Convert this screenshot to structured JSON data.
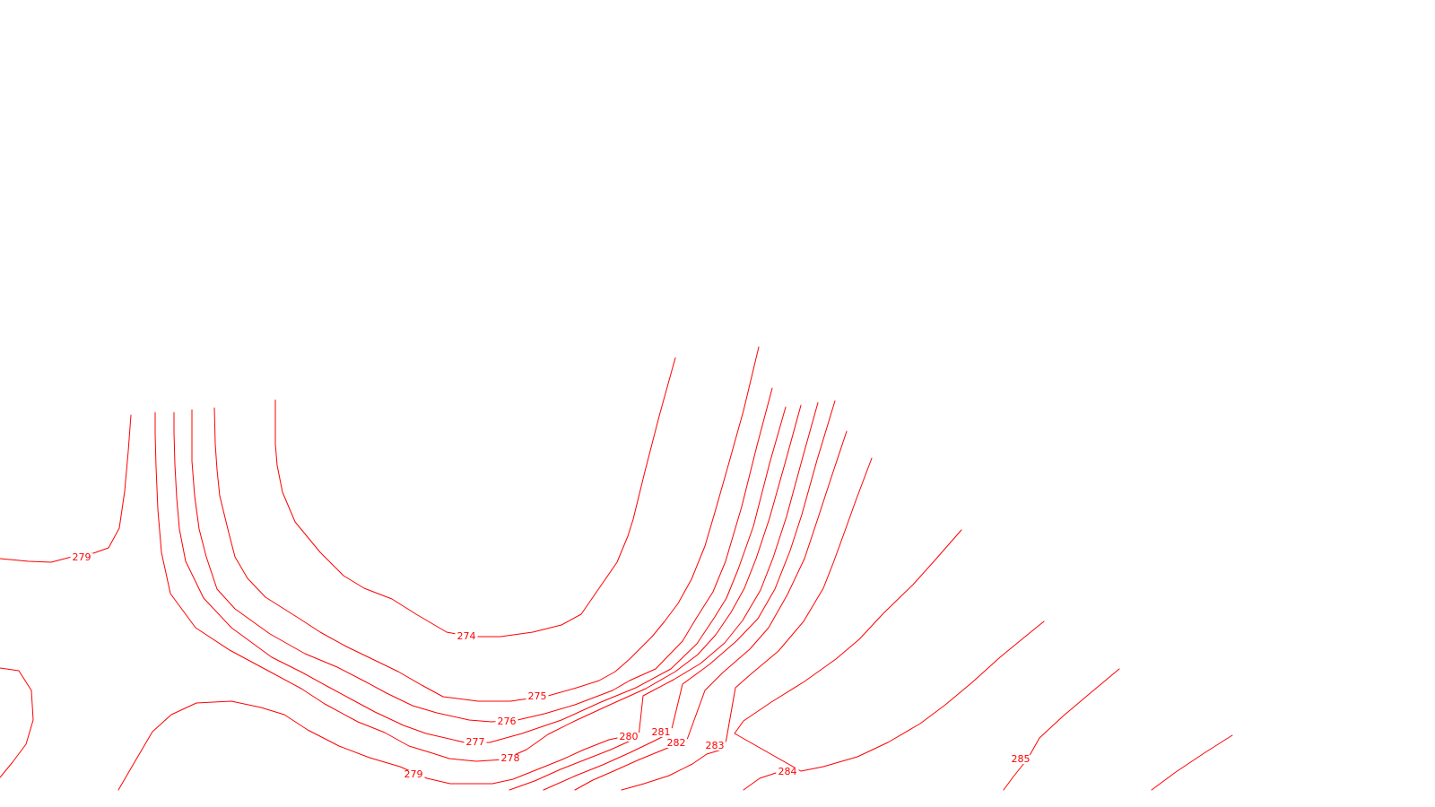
{
  "map": {
    "line_color": "#ff0000",
    "background_color": "#ffffff",
    "contours": [
      {
        "elevation": "274"
      },
      {
        "elevation": "275"
      },
      {
        "elevation": "276"
      },
      {
        "elevation": "277"
      },
      {
        "elevation": "278"
      },
      {
        "elevation": "279"
      },
      {
        "elevation": "279"
      },
      {
        "elevation": "280"
      },
      {
        "elevation": "281"
      },
      {
        "elevation": "282"
      },
      {
        "elevation": "283"
      },
      {
        "elevation": "284"
      },
      {
        "elevation": "285"
      },
      {
        "elevation": ""
      },
      {
        "elevation": ""
      },
      {
        "elevation": ""
      }
    ]
  }
}
